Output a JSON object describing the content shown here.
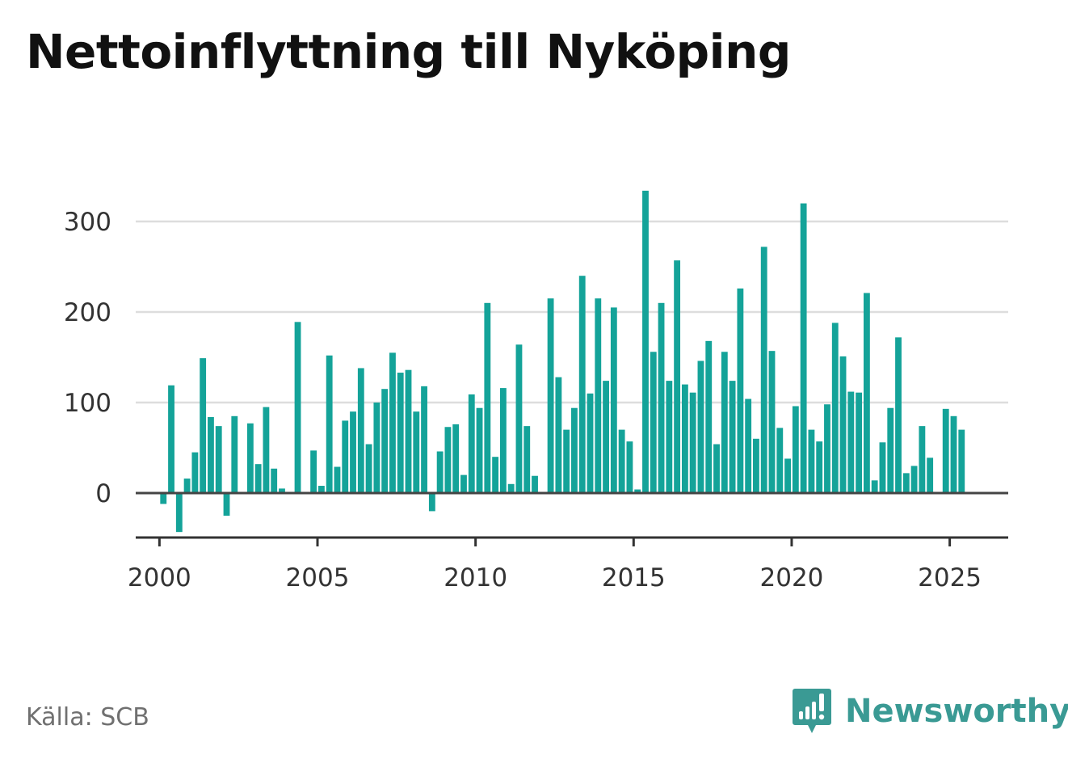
{
  "title": "Nettoinflyttning till Nyköping",
  "source": "Källa: SCB",
  "brand": {
    "name": "Newsworthy",
    "icon": "newsworthy-logo-icon",
    "color": "#3a9a94"
  },
  "colors": {
    "bar": "#14a399",
    "grid": "#dddddd",
    "zero_line": "#444444",
    "axis": "#333333"
  },
  "chart_data": {
    "type": "bar",
    "title": "Nettoinflyttning till Nyköping",
    "xlabel": "",
    "ylabel": "",
    "x_range": [
      1999.25,
      2026.85
    ],
    "ylim": [
      -50,
      335
    ],
    "y_ticks": [
      0,
      100,
      200,
      300
    ],
    "x_ticks": [
      2000,
      2005,
      2010,
      2015,
      2020,
      2025
    ],
    "grid": true,
    "legend": "none",
    "series": [
      {
        "start_year": 2000,
        "periods_per_year": 4,
        "values": [
          -12,
          119,
          -43,
          16,
          45,
          149,
          84,
          74,
          -25,
          85,
          0,
          77,
          32,
          95,
          27,
          5,
          0,
          189,
          0,
          47,
          8,
          152,
          29,
          80,
          90,
          138,
          54,
          100,
          115,
          155,
          133,
          136,
          90,
          118,
          -20,
          46,
          73,
          76,
          20,
          109,
          94,
          210,
          40,
          116,
          10,
          164,
          74,
          19,
          0,
          215,
          128,
          70,
          94,
          240,
          110,
          215,
          124,
          205,
          70,
          57,
          4,
          334,
          156,
          210,
          124,
          257,
          120,
          111,
          146,
          168,
          54,
          156,
          124,
          226,
          104,
          60,
          272,
          157,
          72,
          38,
          96,
          320,
          70,
          57,
          98,
          188,
          151,
          112,
          111,
          221,
          14,
          56,
          94,
          172,
          22,
          30,
          74,
          39,
          0,
          93,
          85,
          70
        ]
      }
    ]
  }
}
